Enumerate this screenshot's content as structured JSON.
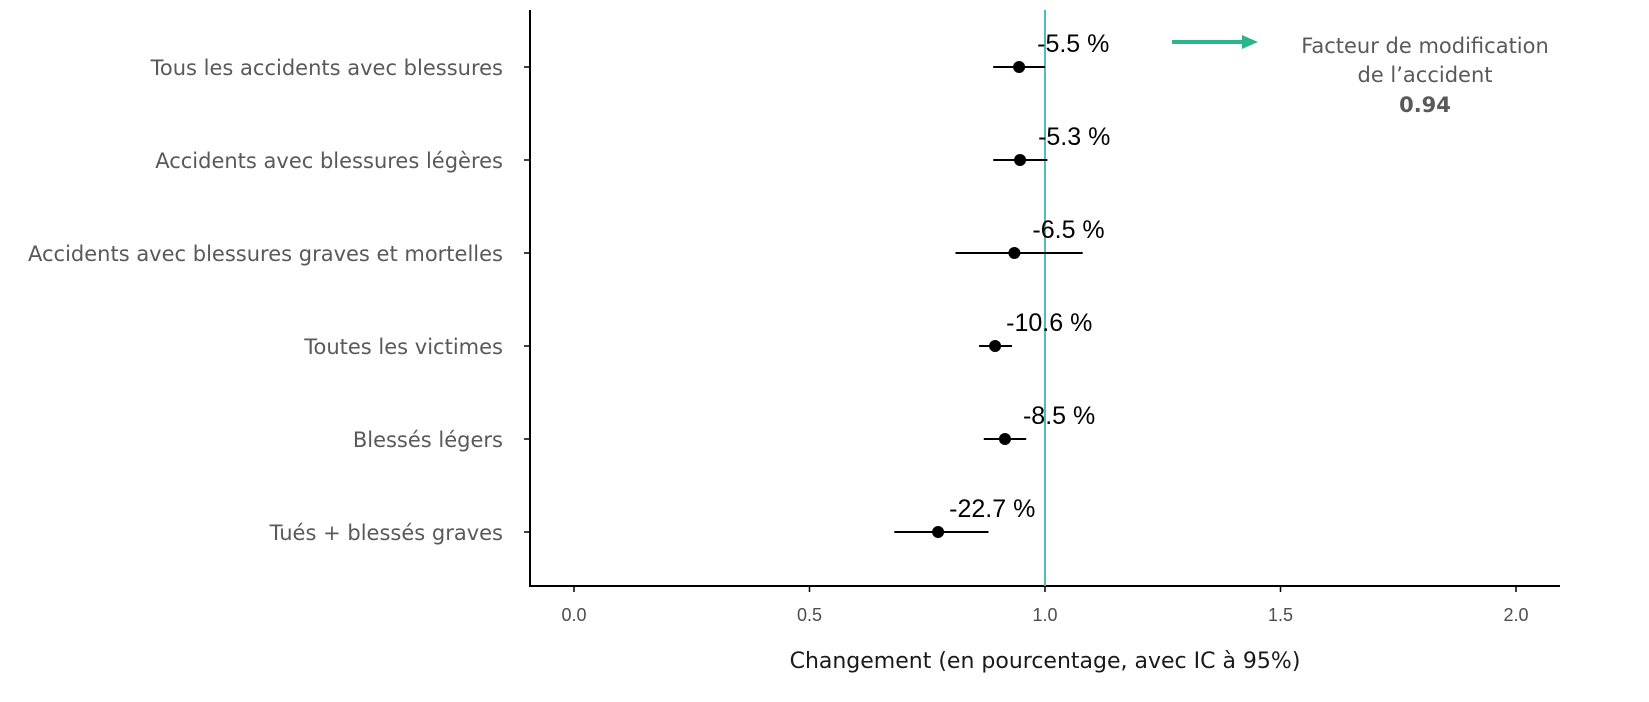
{
  "chart_data": {
    "type": "scatter",
    "subtype": "forest-plot",
    "title": "",
    "xlabel": "Changement (en pourcentage, avec IC à 95%)",
    "ylabel": "",
    "xlim": [
      -0.08,
      2.1
    ],
    "xticks": [
      0.0,
      0.5,
      1.0,
      1.5,
      2.0
    ],
    "xtick_labels": [
      "0.0",
      "0.5",
      "1.0",
      "1.5",
      "2.0"
    ],
    "grid": false,
    "reference_line": {
      "x": 1.0,
      "color": "#4dbfb8"
    },
    "categories": [
      "Tous les accidents avec blessures",
      "Accidents avec blessures légères",
      "Accidents avec blessures graves et mortelles",
      "Toutes les victimes",
      "Blessés légers",
      "Tués + blessés graves"
    ],
    "values": [
      0.945,
      0.947,
      0.935,
      0.894,
      0.915,
      0.773
    ],
    "ci_low": [
      0.89,
      0.89,
      0.81,
      0.86,
      0.87,
      0.68
    ],
    "ci_high": [
      1.0,
      1.005,
      1.08,
      0.93,
      0.96,
      0.88
    ],
    "data_labels": [
      "-5.5 %",
      "-5.3 %",
      "-6.5 %",
      "-10.6 %",
      "-8.5 %",
      "-22.7 %"
    ],
    "annotation": {
      "line1": "Facteur de modification",
      "line2": "de l’accident",
      "value": "0.94",
      "arrow_color": "#2bb58c"
    },
    "colors": {
      "points": "#000000",
      "axis": "#000000"
    }
  }
}
